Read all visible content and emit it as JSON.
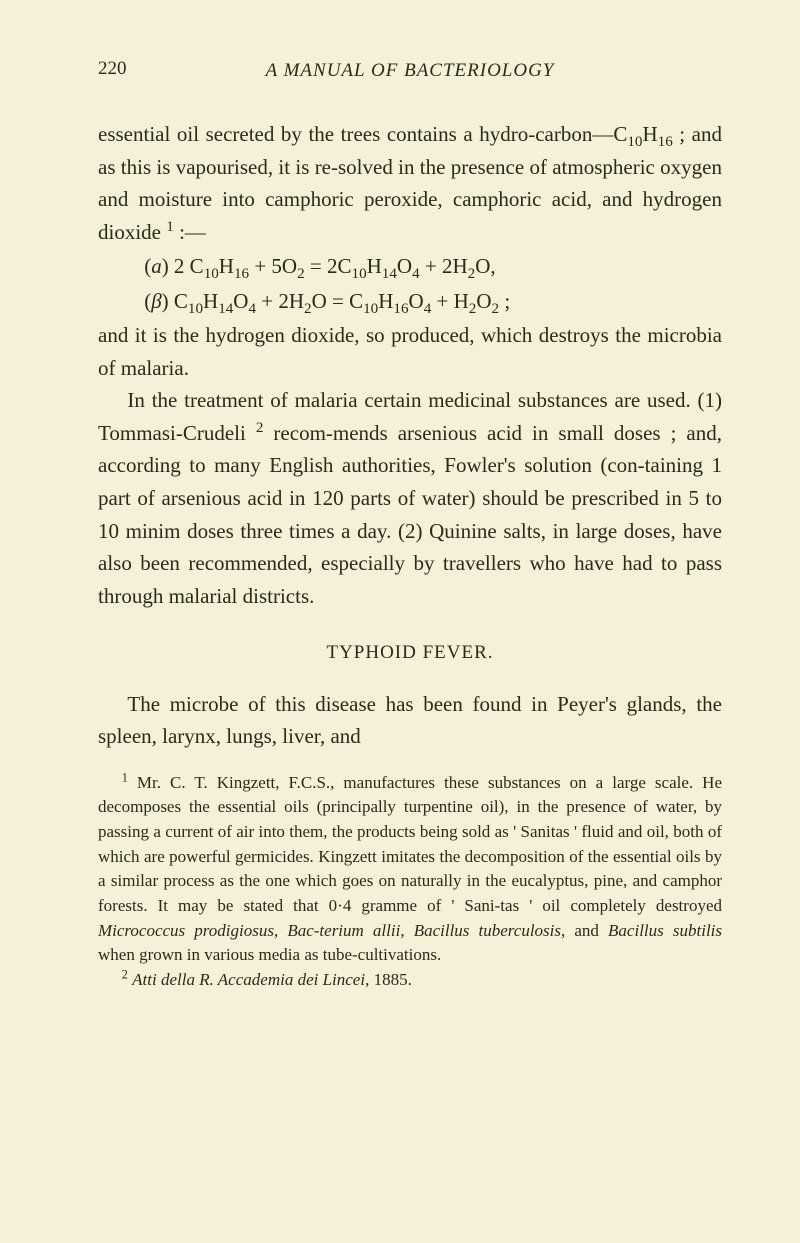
{
  "pageNumber": "220",
  "runningHeader": "A MANUAL OF BACTERIOLOGY",
  "para1a": "essential oil secreted by the trees contains a hydro-carbon—C",
  "sub10a": "10",
  "para1b": "H",
  "sub16a": "16",
  "para1c": " ; and as this is vapourised, it is re-solved in the presence of atmospheric oxygen and moisture into camphoric peroxide, camphoric acid, and hydrogen dioxide ",
  "sup1": "1",
  "para1d": " :—",
  "eqA_a": "(",
  "eqA_var": "a",
  "eqA_b": ") 2 C",
  "eqA_s10": "10",
  "eqA_c": "H",
  "eqA_s16": "16",
  "eqA_d": " + 5O",
  "eqA_s2a": "2",
  "eqA_e": "   =  2C",
  "eqA_s10b": "10",
  "eqA_f": "H",
  "eqA_s14": "14",
  "eqA_g": "O",
  "eqA_s4": "4",
  "eqA_h": " + 2H",
  "eqA_s2b": "2",
  "eqA_i": "O,",
  "eqB_a": "(",
  "eqB_var": "β",
  "eqB_b": ") C",
  "eqB_s10": "10",
  "eqB_c": "H",
  "eqB_s14": "14",
  "eqB_d": "O",
  "eqB_s4": "4",
  "eqB_e": " + 2H",
  "eqB_s2a": "2",
  "eqB_f": "O  =  C",
  "eqB_s10b": "10",
  "eqB_g": "H",
  "eqB_s16": "16",
  "eqB_h": "O",
  "eqB_s4b": "4",
  "eqB_i": " + H",
  "eqB_s2b": "2",
  "eqB_j": "O",
  "eqB_s2c": "2",
  "eqB_k": " ;",
  "para2": "and it is the hydrogen dioxide, so produced, which destroys the microbia of malaria.",
  "para3a": "In the treatment of malaria certain medicinal substances are used.  (1) Tommasi-Crudeli ",
  "sup2": "2",
  "para3b": " recom-mends arsenious acid in small doses ; and, according to many English authorities, Fowler's solution (con-taining 1 part of arsenious acid in 120 parts of water) should be prescribed in 5 to 10 minim doses three times a day.  (2) Quinine salts, in large doses, have also been recommended, especially by travellers who have had to pass through malarial districts.",
  "sectionHeading": "TYPHOID FEVER.",
  "para4": "The microbe of this disease has been found in Peyer's glands, the spleen, larynx, lungs, liver, and",
  "fn1_sup": "1",
  "fn1a": " Mr. C. T. Kingzett, F.C.S., manufactures these substances on a large scale.  He decomposes the essential oils (principally turpentine oil), in the presence of water, by passing a current of air into them, the products being sold as ' Sanitas ' fluid and oil, both of which are powerful germicides.  Kingzett imitates the decomposition of the essential oils by a similar process as the one which goes on naturally in the eucalyptus, pine, and camphor forests.  It may be stated that 0·4 gramme of ' Sani-tas ' oil completely destroyed ",
  "fn1_it1": "Micrococcus prodigiosus",
  "fn1b": ", ",
  "fn1_it2": "Bac-terium allii",
  "fn1c": ", ",
  "fn1_it3": "Bacillus tuberculosis",
  "fn1d": ", and ",
  "fn1_it4": "Bacillus subtilis",
  "fn1e": " when grown in various media as tube-cultivations.",
  "fn2_sup": "2",
  "fn2a": " ",
  "fn2_it": "Atti della R. Accademia dei Lincei",
  "fn2b": ", 1885."
}
